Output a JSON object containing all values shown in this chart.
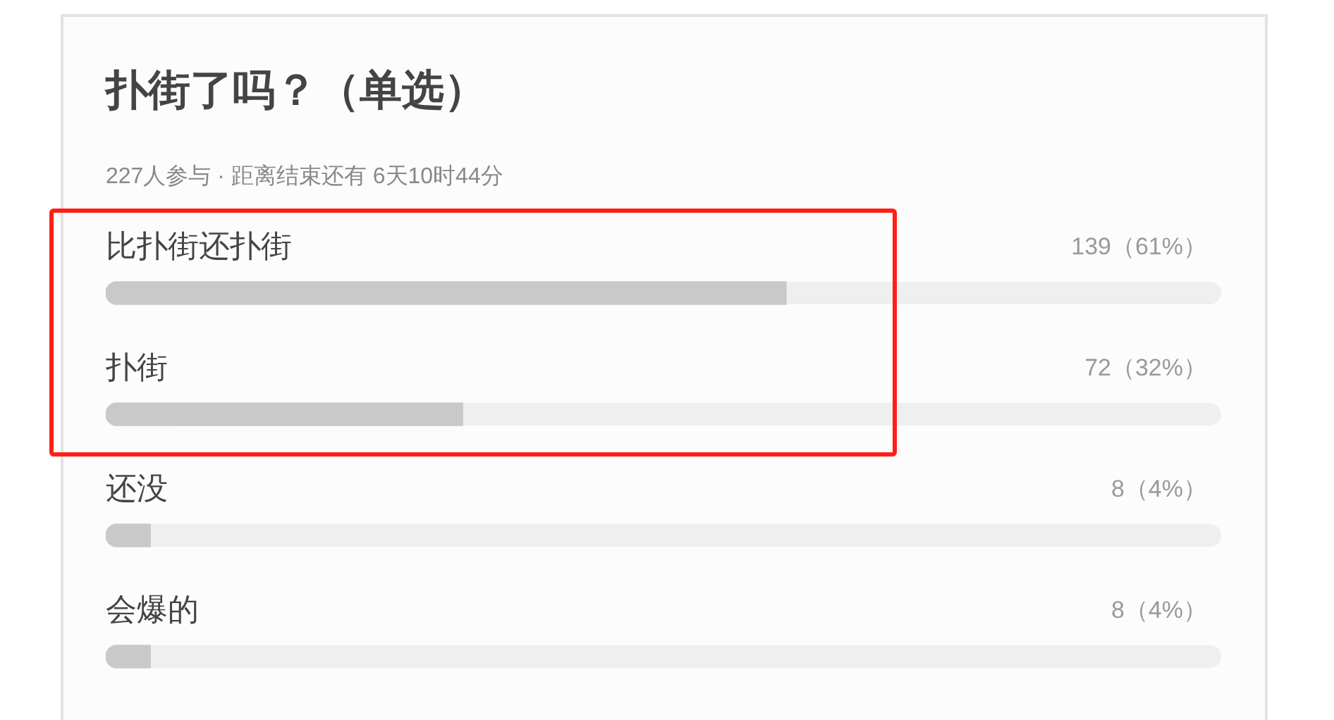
{
  "chart_data": {
    "type": "bar",
    "orientation": "horizontal",
    "title": "扑街了吗？（单选）",
    "subtitle": "227人参与 · 距离结束还有 6天10时44分",
    "categories": [
      "比扑街还扑街",
      "扑街",
      "还没",
      "会爆的"
    ],
    "values": [
      61,
      32,
      4,
      4
    ],
    "color": "#c9c9c9",
    "value_labels": [
      "139（61%）",
      "72（32%）",
      "8（4%）",
      "8（4%）"
    ],
    "xlim": [
      0,
      100
    ],
    "tick_labels": "y"
  }
}
